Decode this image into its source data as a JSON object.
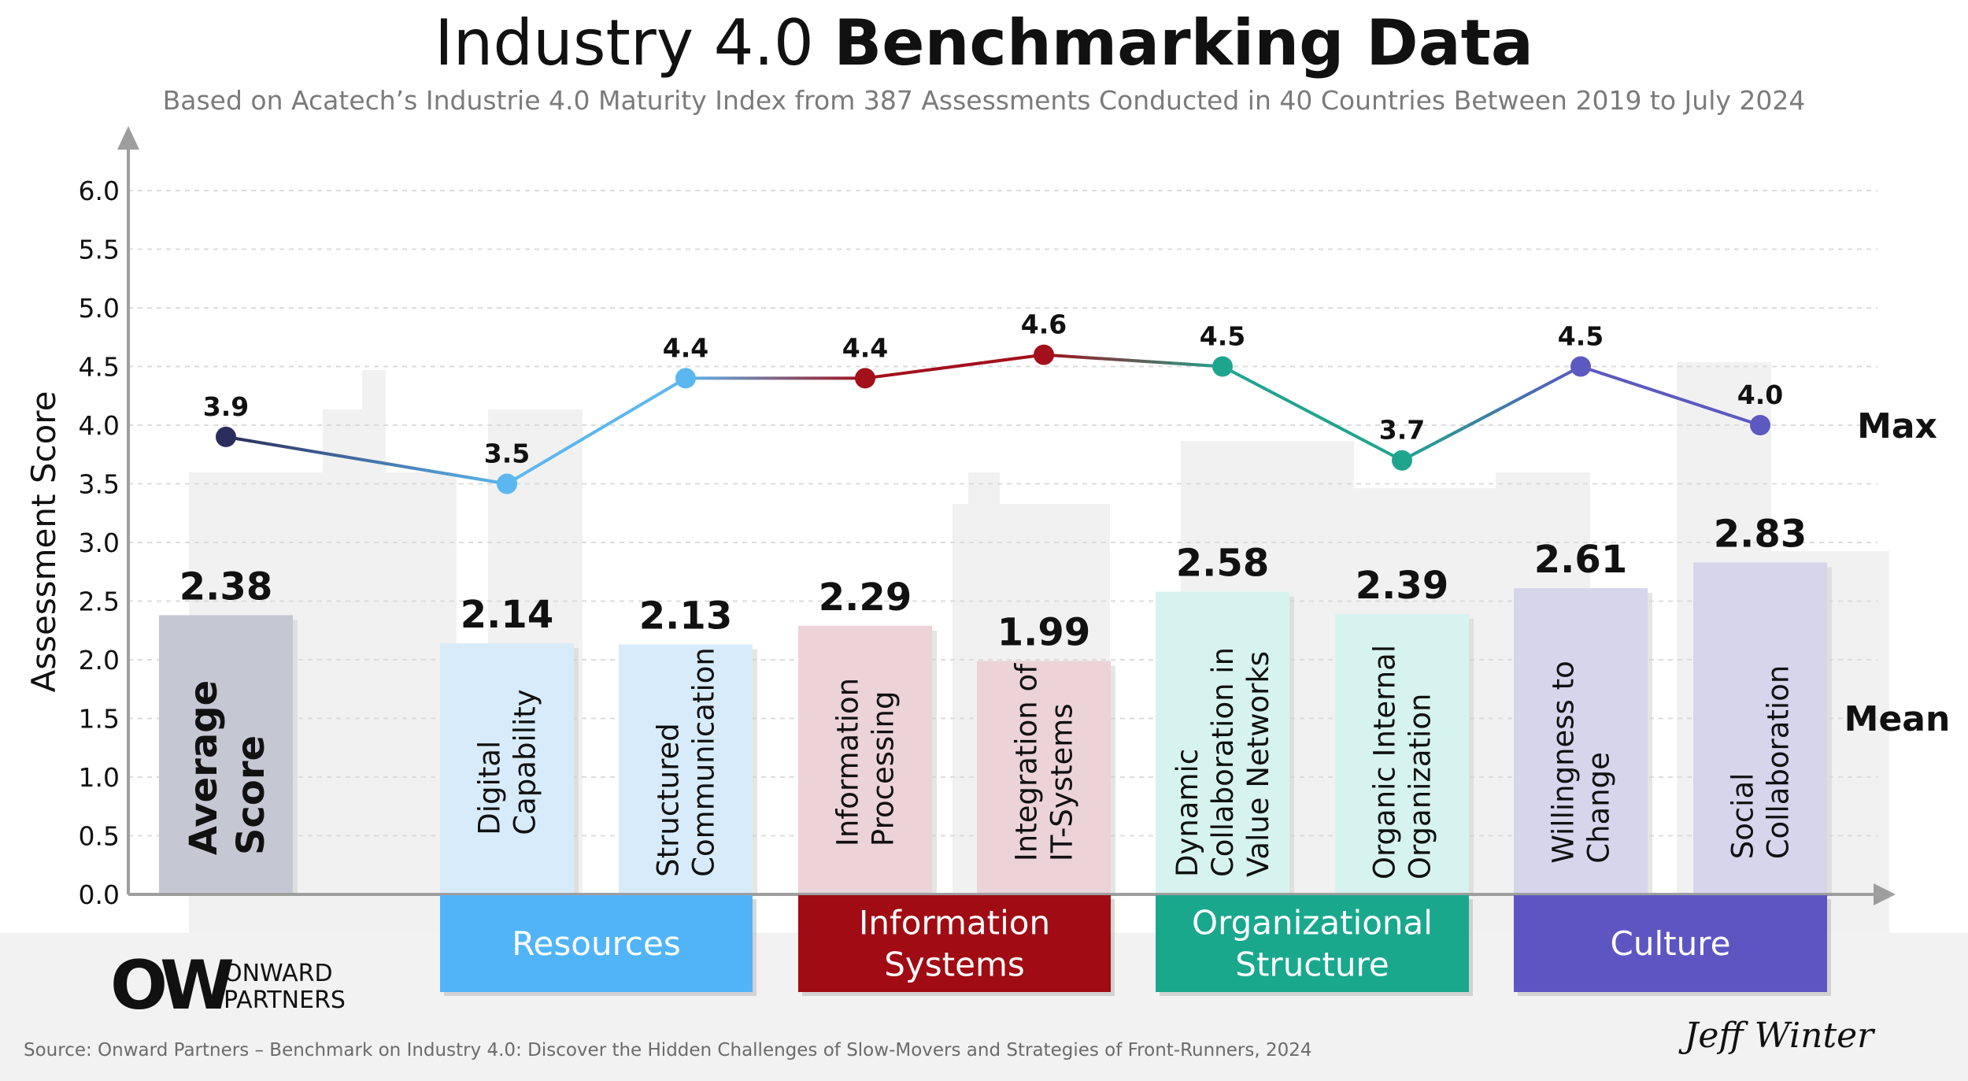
{
  "header": {
    "title_regular": "Industry 4.0 ",
    "title_bold": "Benchmarking Data",
    "subtitle": "Based on Acatech’s Industrie 4.0 Maturity Index from 387 Assessments Conducted in 40 Countries Between 2019 to July 2024"
  },
  "chart_data": {
    "type": "bar",
    "ylabel": "Assessment Score",
    "ylim": [
      0,
      6.0
    ],
    "yticks": [
      "0.0",
      "0.5",
      "1.0",
      "1.5",
      "2.0",
      "2.5",
      "3.0",
      "3.5",
      "4.0",
      "4.5",
      "5.0",
      "5.5",
      "6.0"
    ],
    "grid": true,
    "categories": [
      "Average Score",
      "Digital Capability",
      "Structured Communication",
      "Information Processing",
      "Integration of IT-Systems",
      "Dynamic Collaboration in Value Networks",
      "Organic Internal Organization",
      "Willingness to Change",
      "Social Collaboration"
    ],
    "category_lines": [
      [
        "Average",
        "Score"
      ],
      [
        "Digital",
        "Capability"
      ],
      [
        "Structured",
        "Communication"
      ],
      [
        "Information",
        "Processing"
      ],
      [
        "Integration of",
        "IT-Systems"
      ],
      [
        "Dynamic",
        "Collaboration in",
        "Value Networks"
      ],
      [
        "Organic Internal",
        "Organization"
      ],
      [
        "Willingness to",
        "Change"
      ],
      [
        "Social",
        "Collaboration"
      ]
    ],
    "series": [
      {
        "name": "Mean",
        "values": [
          2.38,
          2.14,
          2.13,
          2.29,
          1.99,
          2.58,
          2.39,
          2.61,
          2.83
        ],
        "labels": [
          "2.38",
          "2.14",
          "2.13",
          "2.29",
          "1.99",
          "2.58",
          "2.39",
          "2.61",
          "2.83"
        ]
      },
      {
        "name": "Max",
        "values": [
          3.9,
          3.5,
          4.4,
          4.4,
          4.6,
          4.5,
          3.7,
          4.5,
          4.0
        ],
        "labels": [
          "3.9",
          "3.5",
          "4.4",
          "4.4",
          "4.6",
          "4.5",
          "3.7",
          "4.5",
          "4.0"
        ]
      }
    ],
    "bar_colors": [
      "#c5c7d3",
      "#d8ebfa",
      "#d8ebfa",
      "#ebd3d8",
      "#ebd3d8",
      "#d7f3ef",
      "#d7f3ef",
      "#d6d5ec",
      "#d6d5ec"
    ],
    "point_colors": [
      "#2b2d5c",
      "#5bb7ef",
      "#5bb7ef",
      "#a3101b",
      "#a3101b",
      "#1fa58e",
      "#1fa58e",
      "#5c59c1",
      "#5c59c1"
    ],
    "groups": [
      {
        "lines": [
          "Resources"
        ],
        "color": "#52b4f8",
        "from": 1,
        "to": 2
      },
      {
        "lines": [
          "Information",
          "Systems"
        ],
        "color": "#a10c14",
        "from": 3,
        "to": 4
      },
      {
        "lines": [
          "Organizational",
          "Structure"
        ],
        "color": "#1aa88d",
        "from": 5,
        "to": 6
      },
      {
        "lines": [
          "Culture"
        ],
        "color": "#5d56c2",
        "from": 7,
        "to": 8
      }
    ]
  },
  "footer": {
    "source": "Source: Onward Partners – Benchmark on Industry 4.0: Discover the Hidden Challenges of Slow-Movers and Strategies of Front-Runners, 2024",
    "logo_mark": "OW",
    "logo_line1": "ONWARD",
    "logo_line2": "PARTNERS",
    "signature": "Jeff Winter"
  }
}
